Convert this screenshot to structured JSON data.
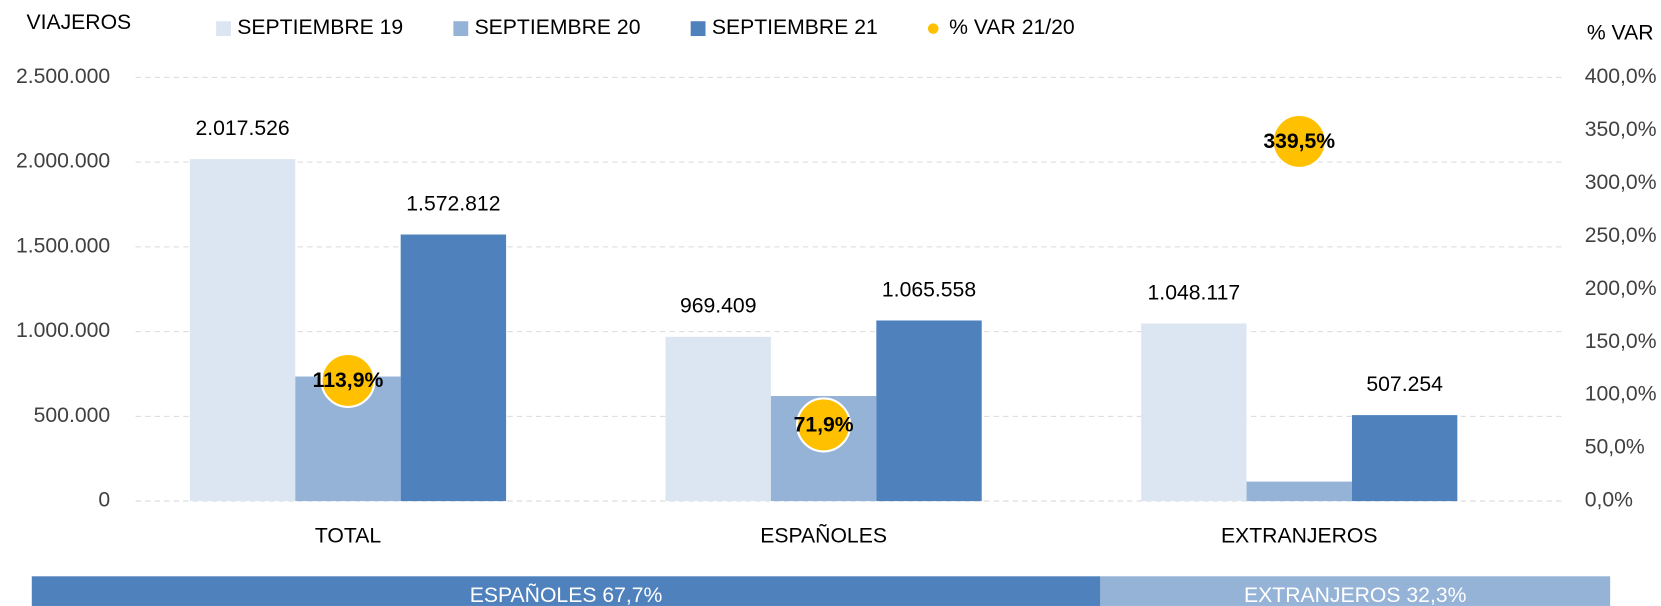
{
  "chart_data": {
    "type": "bar",
    "y_axis_title": "VIAJEROS",
    "y2_axis_title": "% VAR",
    "categories": [
      "TOTAL",
      "ESPAÑOLES",
      "EXTRANJEROS"
    ],
    "series": [
      {
        "name": "SEPTIEMBRE 19",
        "color": "#dce6f2",
        "values": [
          2017526,
          969409,
          1048117
        ],
        "value_labels": [
          "2.017.526",
          "969.409",
          "1.048.117"
        ]
      },
      {
        "name": "SEPTIEMBRE 20",
        "color": "#95b3d7",
        "values": [
          735000,
          620000,
          115000
        ]
      },
      {
        "name": "SEPTIEMBRE 21",
        "color": "#4f81bd",
        "values": [
          1572812,
          1065558,
          507254
        ],
        "value_labels": [
          "1.572.812",
          "1.065.558",
          "507.254"
        ]
      },
      {
        "name": "% VAR 21/20",
        "color": "#ffc000",
        "type": "scatter",
        "axis": "y2",
        "values": [
          113.9,
          71.9,
          339.5
        ],
        "value_labels": [
          "113,9%",
          "71,9%",
          "339,5%"
        ]
      }
    ],
    "ylim": [
      0,
      2500000
    ],
    "yticks": [
      0,
      {
        "value": 500000,
        "label": "500.000"
      },
      {
        "value": 1000000,
        "label": "1.000.000"
      },
      {
        "value": 1500000,
        "label": "1.500.000"
      },
      {
        "value": 2000000,
        "label": "2.000.000"
      },
      {
        "value": 2500000,
        "label": "2.500.000"
      }
    ],
    "y2lim": [
      0,
      400
    ],
    "y2ticks": [
      {
        "value": 0,
        "label": "0,0%"
      },
      {
        "value": 50,
        "label": "50,0%"
      },
      {
        "value": 100,
        "label": "100,0%"
      },
      {
        "value": 150,
        "label": "150,0%"
      },
      {
        "value": 200,
        "label": "200,0%"
      },
      {
        "value": 250,
        "label": "250,0%"
      },
      {
        "value": 300,
        "label": "300,0%"
      },
      {
        "value": 350,
        "label": "350,0%"
      },
      {
        "value": 400,
        "label": "400,0%"
      }
    ],
    "grid": true,
    "legend": "top",
    "share_bar": [
      {
        "label": "ESPAÑOLES 67,7%",
        "value": 67.7,
        "color": "#4f81bd"
      },
      {
        "label": "EXTRANJEROS 32,3%",
        "value": 32.3,
        "color": "#95b3d7"
      }
    ]
  }
}
